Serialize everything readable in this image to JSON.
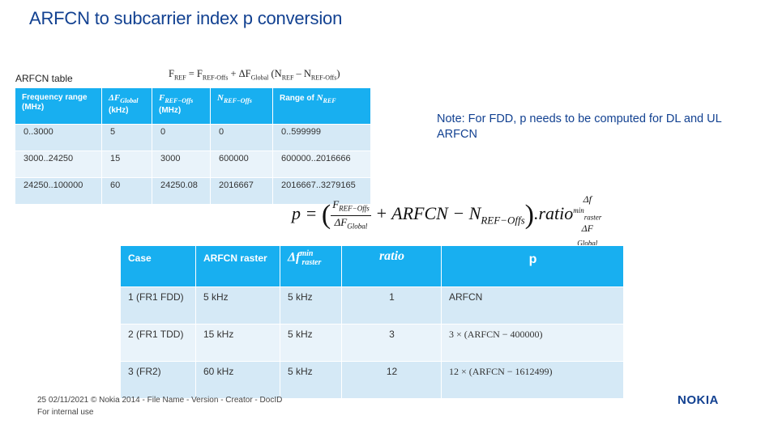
{
  "slide": {
    "title": "ARFCN to subcarrier index p conversion",
    "table_caption": "ARFCN table",
    "note": "Note: For FDD, p needs to be computed for DL and UL ARFCN"
  },
  "formula_top": {
    "lhs": "F",
    "lhs_sub": "REF",
    "eq": " = F",
    "t1_sub": "REF-Offs",
    "plus": " + ΔF",
    "t2_sub": "Global",
    "open": " (N",
    "t3_sub": "REF",
    "minus": " – N",
    "t4_sub": "REF-Offs",
    "close": ")"
  },
  "arfcn_table": {
    "headers": [
      "Frequency range (MHz)",
      "ΔFGlobal (kHz)",
      "FREF−Offs (MHz)",
      "NREF−Offs",
      "Range of NREF"
    ],
    "header_parts": {
      "h1": "Frequency range (MHz)",
      "h2_math": "ΔF",
      "h2_sub": "Global",
      "h2_unit": "(kHz)",
      "h3_math": "F",
      "h3_sub": "REF−Offs",
      "h3_unit": "(MHz)",
      "h4_math": "N",
      "h4_sub": "REF−Offs",
      "h5_text": "Range of ",
      "h5_math": "N",
      "h5_sub": "REF"
    },
    "rows": [
      [
        "0..3000",
        "5",
        "0",
        "0",
        "0..599999"
      ],
      [
        "3000..24250",
        "15",
        "3000",
        "600000",
        "600000..2016666"
      ],
      [
        "24250..100000",
        "60",
        "24250.08",
        "2016667",
        "2016667..3279165"
      ]
    ]
  },
  "equation": {
    "lhs": "p = ",
    "frac_num": "F",
    "frac_num_sub": "REF−Offs",
    "frac_den": "ΔF",
    "frac_den_sub": "Global",
    "mid": " + ARFCN − N",
    "mid_sub": "REF−Offs",
    "tail": ".ratio",
    "sup_num": "Δf",
    "sup_num_sup": "min",
    "sup_num_sub": "raster",
    "sup_den": "ΔF",
    "sup_den_sub": "Global"
  },
  "case_table": {
    "header_case": "Case",
    "header_raster": "ARFCN raster",
    "header_df": "Δf",
    "header_df_sup": "min",
    "header_df_sub": "raster",
    "header_ratio": "ratio",
    "header_p": "p",
    "rows": [
      {
        "case": "1 (FR1 FDD)",
        "raster": "5 kHz",
        "df": "5 kHz",
        "ratio": "1",
        "p": "ARFCN"
      },
      {
        "case": "2 (FR1 TDD)",
        "raster": "15 kHz",
        "df": "5 kHz",
        "ratio": "3",
        "p": "3 × (ARFCN − 400000)"
      },
      {
        "case": "3 (FR2)",
        "raster": "60 kHz",
        "df": "5 kHz",
        "ratio": "12",
        "p": "12 × (ARFCN − 1612499)"
      }
    ]
  },
  "footer": {
    "line1": "25     02/11/2021 © Nokia 2014  - File Name  - Version  - Creator  - DocID",
    "line2": "For internal use",
    "logo": "NOKIA"
  }
}
